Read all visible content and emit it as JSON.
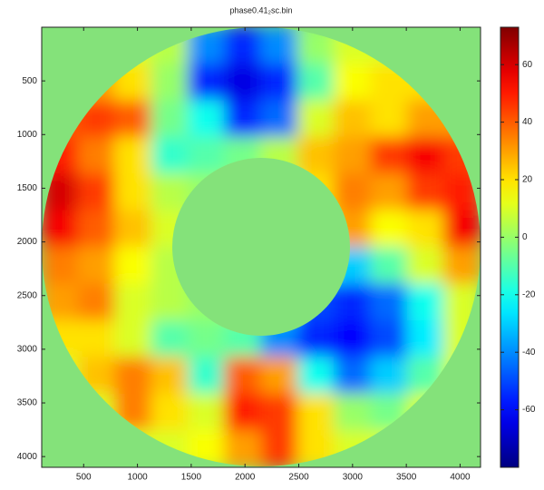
{
  "chart_data": {
    "type": "heatmap",
    "title": "phase0.41₂sc.bin",
    "colormap": "jet",
    "xlim": [
      110,
      4190
    ],
    "ylim": [
      0,
      4100
    ],
    "y_reversed": true,
    "xticks": [
      500,
      1000,
      1500,
      2000,
      2500,
      3000,
      3500,
      4000
    ],
    "yticks": [
      500,
      1000,
      1500,
      2000,
      2500,
      3000,
      3500,
      4000
    ],
    "clim": [
      -80,
      73
    ],
    "colorbar_ticks": [
      -60,
      -40,
      -20,
      0,
      20,
      40,
      60
    ],
    "values": [
      [
        10,
        10,
        10,
        5,
        -40,
        -55,
        -40,
        0,
        10,
        10,
        10,
        10
      ],
      [
        20,
        30,
        20,
        0,
        -55,
        -65,
        -55,
        -10,
        15,
        20,
        20,
        20
      ],
      [
        40,
        45,
        40,
        -5,
        -20,
        -55,
        -45,
        10,
        25,
        20,
        30,
        30
      ],
      [
        50,
        35,
        20,
        -15,
        -10,
        -5,
        5,
        25,
        30,
        45,
        55,
        45
      ],
      [
        60,
        45,
        20,
        5,
        0,
        0,
        0,
        20,
        35,
        30,
        45,
        50
      ],
      [
        55,
        40,
        25,
        10,
        0,
        0,
        0,
        10,
        30,
        15,
        20,
        55
      ],
      [
        35,
        30,
        15,
        5,
        0,
        0,
        0,
        -15,
        -30,
        -10,
        10,
        30
      ],
      [
        30,
        35,
        10,
        5,
        0,
        0,
        -20,
        -50,
        -55,
        -45,
        -20,
        10
      ],
      [
        20,
        20,
        10,
        -10,
        -5,
        -10,
        -40,
        -55,
        -60,
        -50,
        -25,
        10
      ],
      [
        10,
        25,
        35,
        25,
        -15,
        40,
        30,
        -20,
        -45,
        -30,
        -10,
        10
      ],
      [
        10,
        10,
        35,
        20,
        10,
        50,
        45,
        20,
        0,
        -5,
        10,
        10
      ],
      [
        10,
        10,
        10,
        10,
        15,
        30,
        45,
        20,
        10,
        10,
        10,
        10
      ]
    ]
  }
}
